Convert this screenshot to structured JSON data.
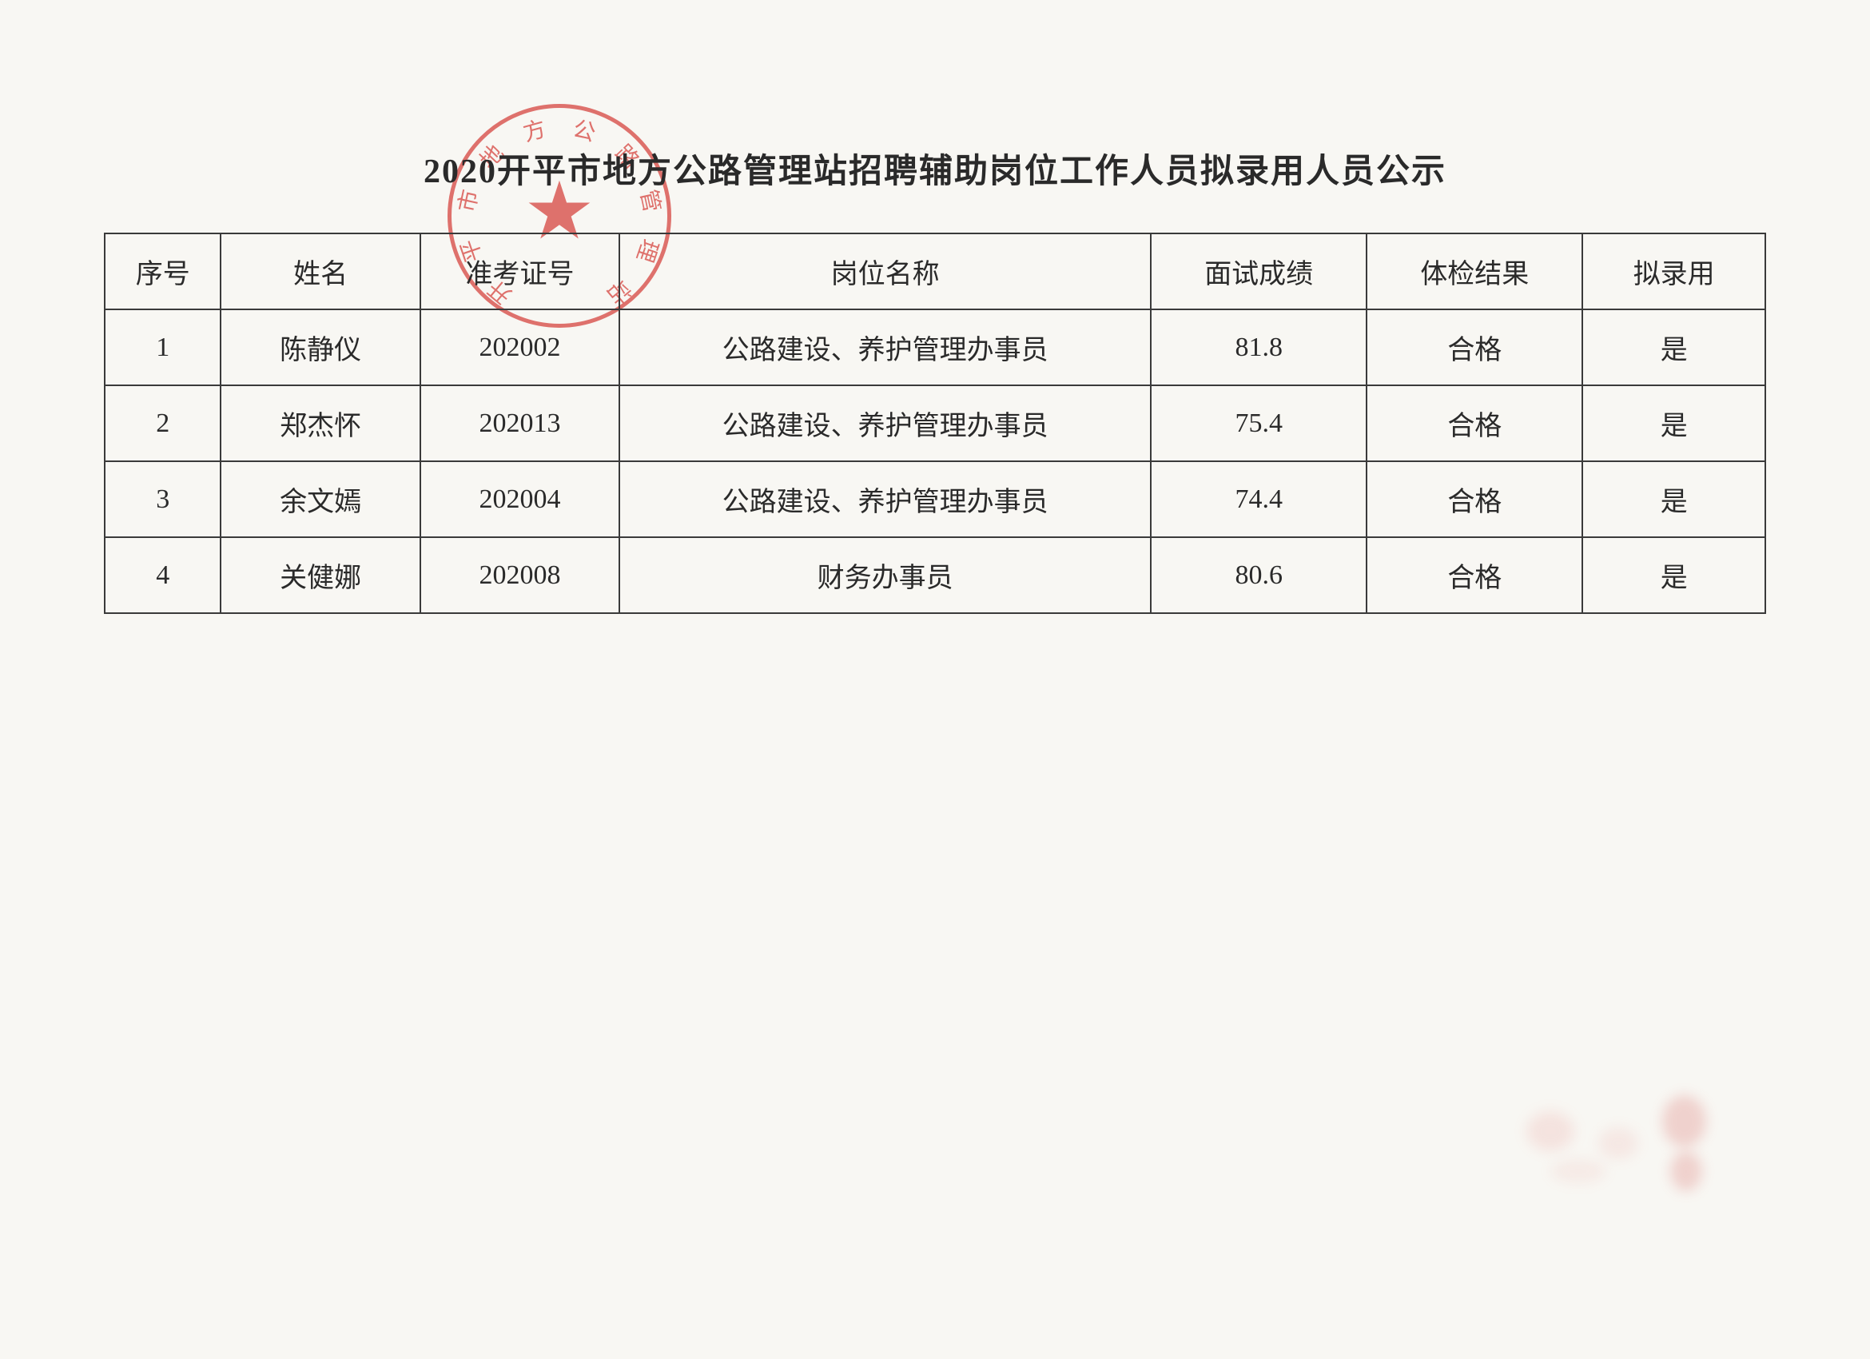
{
  "document": {
    "title": "2020开平市地方公路管理站招聘辅助岗位工作人员拟录用人员公示",
    "stamp_text": "开平市地方公路管理站",
    "stamp_color": "#d6453f",
    "background_color": "#f8f7f3",
    "text_color": "#2a2a2a",
    "border_color": "#3a3a3a",
    "title_fontsize": 42,
    "cell_fontsize": 34
  },
  "table": {
    "type": "table",
    "columns": [
      {
        "key": "seq",
        "label": "序号",
        "width_pct": 7,
        "align": "center"
      },
      {
        "key": "name",
        "label": "姓名",
        "width_pct": 12,
        "align": "center"
      },
      {
        "key": "exam_no",
        "label": "准考证号",
        "width_pct": 12,
        "align": "center"
      },
      {
        "key": "position",
        "label": "岗位名称",
        "width_pct": 32,
        "align": "center"
      },
      {
        "key": "score",
        "label": "面试成绩",
        "width_pct": 13,
        "align": "center"
      },
      {
        "key": "health",
        "label": "体检结果",
        "width_pct": 13,
        "align": "center"
      },
      {
        "key": "hire",
        "label": "拟录用",
        "width_pct": 11,
        "align": "center"
      }
    ],
    "rows": [
      {
        "seq": "1",
        "name": "陈静仪",
        "exam_no": "202002",
        "position": "公路建设、养护管理办事员",
        "score": "81.8",
        "health": "合格",
        "hire": "是"
      },
      {
        "seq": "2",
        "name": "郑杰怀",
        "exam_no": "202013",
        "position": "公路建设、养护管理办事员",
        "score": "75.4",
        "health": "合格",
        "hire": "是"
      },
      {
        "seq": "3",
        "name": "余文嫣",
        "exam_no": "202004",
        "position": "公路建设、养护管理办事员",
        "score": "74.4",
        "health": "合格",
        "hire": "是"
      },
      {
        "seq": "4",
        "name": "关健娜",
        "exam_no": "202008",
        "position": "财务办事员",
        "score": "80.6",
        "health": "合格",
        "hire": "是"
      }
    ]
  }
}
